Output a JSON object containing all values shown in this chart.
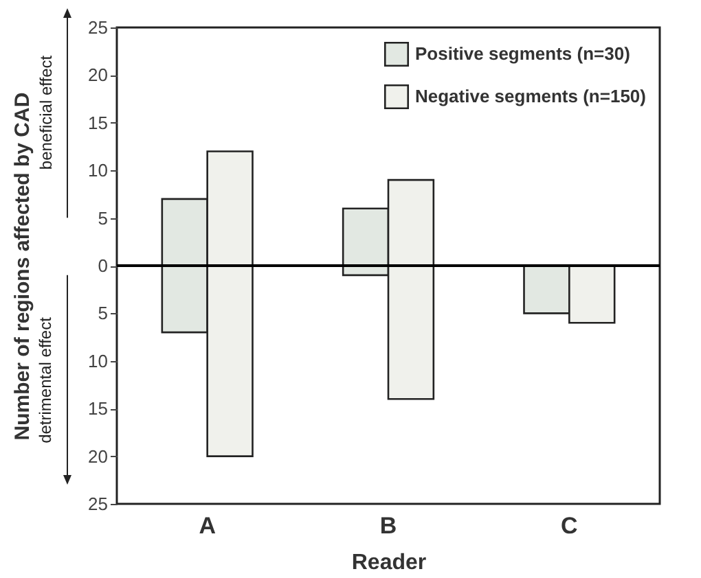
{
  "chart_data": {
    "type": "bar",
    "xlabel": "Reader",
    "ylabel": "Number of regions affected by CAD",
    "categories": [
      "A",
      "B",
      "C"
    ],
    "series": [
      {
        "name": "Positive segments (n=30)",
        "color": "#e2e8e2",
        "base": [
          -7,
          -1,
          -5
        ],
        "values": [
          14,
          7,
          5
        ]
      },
      {
        "name": "Negative segments (n=150)",
        "color": "#f0f1ec",
        "base": [
          -20,
          -14,
          -6
        ],
        "values": [
          32,
          23,
          6
        ]
      }
    ],
    "ylim": [
      -25,
      25
    ],
    "yticks": [
      {
        "value": -25,
        "label": "25"
      },
      {
        "value": -20,
        "label": "20"
      },
      {
        "value": -15,
        "label": "15"
      },
      {
        "value": -10,
        "label": "10"
      },
      {
        "value": -5,
        "label": "5"
      },
      0,
      5,
      10,
      15,
      20,
      25
    ],
    "ref_lines": [
      {
        "axis": "y",
        "value": 0,
        "color": "#000000"
      }
    ],
    "annotations": [
      "beneficial effect",
      "detrimental effect"
    ],
    "legend": "top right",
    "grid": false
  }
}
